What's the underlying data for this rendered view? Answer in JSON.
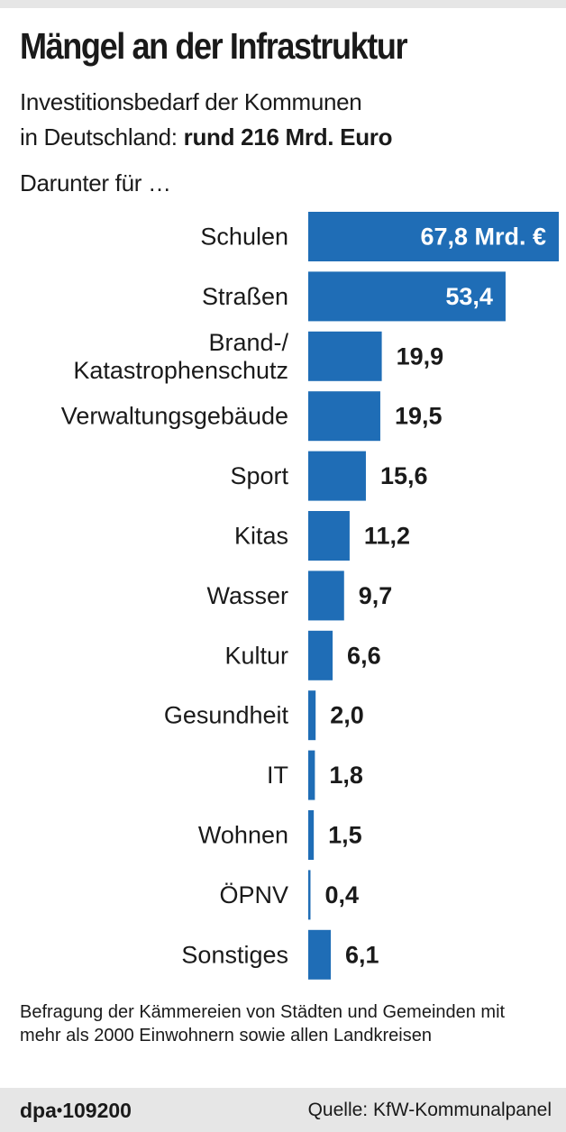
{
  "title": "Mängel an der Infrastruktur",
  "subtitle_line1": "Investitionsbedarf der Kommunen",
  "subtitle_line2_prefix": "in Deutschland: ",
  "subtitle_line2_bold": "rund 216 Mrd. Euro",
  "subtitle_line3": "Darunter für …",
  "chart_data": {
    "type": "bar",
    "orientation": "horizontal",
    "title": "Mängel an der Infrastruktur",
    "unit": "Mrd. €",
    "categories": [
      [
        "Schulen"
      ],
      [
        "Straßen"
      ],
      [
        "Brand-/",
        "Katastrophenschutz"
      ],
      [
        "Verwaltungsgebäude"
      ],
      [
        "Sport"
      ],
      [
        "Kitas"
      ],
      [
        "Wasser"
      ],
      [
        "Kultur"
      ],
      [
        "Gesundheit"
      ],
      [
        "IT"
      ],
      [
        "Wohnen"
      ],
      [
        "ÖPNV"
      ],
      [
        "Sonstiges"
      ]
    ],
    "values": [
      67.8,
      53.4,
      19.9,
      19.5,
      15.6,
      11.2,
      9.7,
      6.6,
      2.0,
      1.8,
      1.5,
      0.4,
      6.1
    ],
    "value_labels": [
      "67,8 Mrd. €",
      "53,4",
      "19,9",
      "19,5",
      "15,6",
      "11,2",
      "9,7",
      "6,6",
      "2,0",
      "1,8",
      "1,5",
      "0,4",
      "6,1"
    ],
    "inside_label_threshold": 40,
    "xlim": [
      0,
      67.8
    ],
    "bar_color": "#1f6db6",
    "grid": false,
    "legend": "none"
  },
  "footnote": "Befragung der Kämmereien von Städten und Gemeinden mit mehr als 2000 Einwohnern sowie allen Landkreisen",
  "footer": {
    "logo_text": "dpa",
    "logo_dot": "•",
    "logo_number": "109200",
    "source": "Quelle:  KfW-Kommunalpanel"
  }
}
